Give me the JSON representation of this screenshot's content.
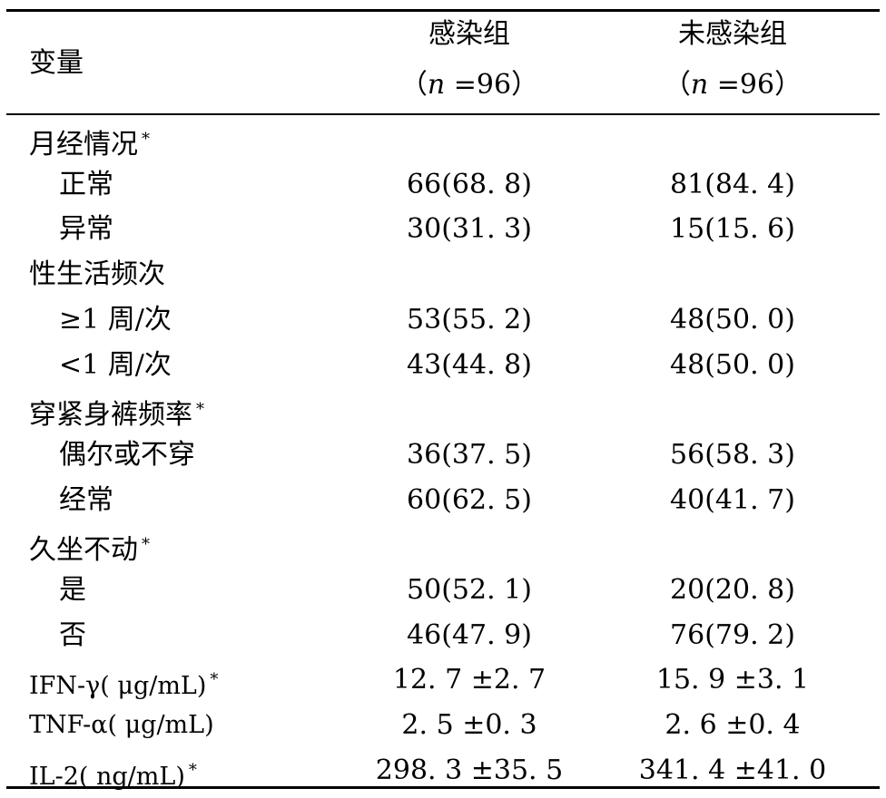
{
  "header": {
    "variable": "变量",
    "group1_name": "感染组",
    "group1_n": "（n =96）",
    "group2_name": "未感染组",
    "group2_n": "（n =96）"
  },
  "rows": [
    {
      "label": "月经情况",
      "star": "*",
      "v1": "",
      "v2": "",
      "sub": false
    },
    {
      "label": "正常",
      "star": "",
      "v1": "66(68. 8)",
      "v2": "81(84. 4)",
      "sub": true
    },
    {
      "label": "异常",
      "star": "",
      "v1": "30(31. 3)",
      "v2": "15(15. 6)",
      "sub": true
    },
    {
      "label": "性生活频次",
      "star": "",
      "v1": "",
      "v2": "",
      "sub": false
    },
    {
      "label": "≥1 周/次",
      "star": "",
      "v1": "53(55. 2)",
      "v2": "48(50. 0)",
      "sub": true
    },
    {
      "label": "<1 周/次",
      "star": "",
      "v1": "43(44. 8)",
      "v2": "48(50. 0)",
      "sub": true
    },
    {
      "label": "穿紧身裤频率",
      "star": "*",
      "v1": "",
      "v2": "",
      "sub": false
    },
    {
      "label": "偶尔或不穿",
      "star": "",
      "v1": "36(37. 5)",
      "v2": "56(58. 3)",
      "sub": true
    },
    {
      "label": "经常",
      "star": "",
      "v1": "60(62. 5)",
      "v2": "40(41. 7)",
      "sub": true
    },
    {
      "label": "久坐不动",
      "star": "*",
      "v1": "",
      "v2": "",
      "sub": false
    },
    {
      "label": "是",
      "star": "",
      "v1": "50(52. 1)",
      "v2": "20(20. 8)",
      "sub": true
    },
    {
      "label": "否",
      "star": "",
      "v1": "46(47. 9)",
      "v2": "76(79. 2)",
      "sub": true
    },
    {
      "label": "IFN-γ( μg/mL)",
      "star": "*",
      "v1": "12. 7 ±2. 7",
      "v2": "15. 9 ±3. 1",
      "sub": false
    },
    {
      "label": "TNF-α( μg/mL)",
      "star": "",
      "v1": "2. 5 ±0. 3",
      "v2": "2. 6 ±0. 4",
      "sub": false
    },
    {
      "label": "IL-2( ng/mL)",
      "star": "*",
      "v1": "298. 3 ±35. 5",
      "v2": "341. 4 ±41. 0",
      "sub": false
    }
  ]
}
